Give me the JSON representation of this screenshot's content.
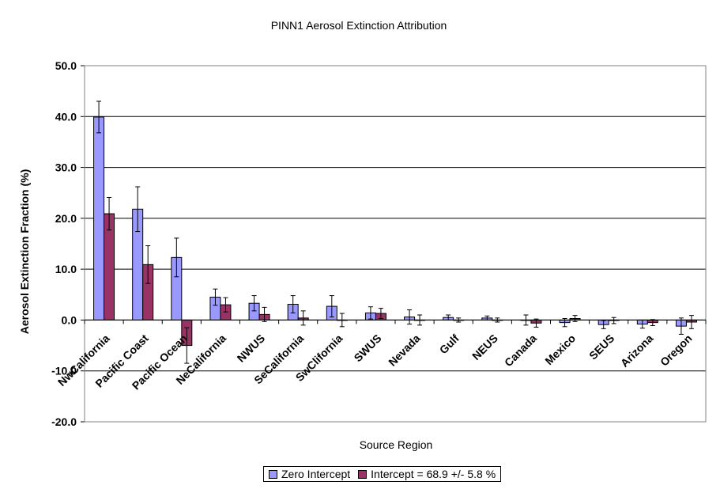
{
  "chart_data": {
    "type": "bar",
    "title": "PINN1 Aerosol Extinction Attribution",
    "xlabel": "Source Region",
    "ylabel": "Aerosol Extinction Fraction (%)",
    "ylim": [
      -20,
      50
    ],
    "yticks": [
      -20,
      -10,
      0,
      10,
      20,
      30,
      40,
      50
    ],
    "ytick_labels": [
      "-20.0",
      "-10.0",
      "0.0",
      "10.0",
      "20.0",
      "30.0",
      "40.0",
      "50.0"
    ],
    "grid": "horizontal",
    "legend_position": "bottom-center",
    "categories": [
      "NwCalifornia",
      "Pacific Coast",
      "Pacific Ocean",
      "NeCalifornia",
      "NWUS",
      "SeCalifornia",
      "SwClifornia",
      "SWUS",
      "Nevada",
      "Gulf",
      "NEUS",
      "Canada",
      "Mexico",
      "SEUS",
      "Arizona",
      "Oregon"
    ],
    "series": [
      {
        "name": "Zero Intercept",
        "color": "#9999ff",
        "values": [
          39.9,
          21.8,
          12.3,
          4.5,
          3.3,
          3.1,
          2.7,
          1.4,
          0.6,
          0.5,
          0.4,
          0.0,
          -0.5,
          -0.9,
          -0.8,
          -1.2
        ],
        "errors": [
          3.1,
          4.4,
          3.8,
          1.6,
          1.5,
          1.7,
          2.1,
          1.2,
          1.4,
          0.5,
          0.4,
          1.0,
          0.8,
          0.8,
          0.8,
          1.6
        ]
      },
      {
        "name": "Intercept = 68.9 +/- 5.8 %",
        "color": "#993366",
        "values": [
          20.9,
          10.9,
          -5.0,
          3.0,
          1.1,
          0.4,
          0.0,
          1.3,
          0.0,
          0.0,
          0.0,
          -0.6,
          0.3,
          -0.1,
          -0.5,
          -0.4
        ],
        "errors": [
          3.2,
          3.7,
          3.5,
          1.4,
          1.4,
          1.4,
          1.3,
          1.0,
          1.0,
          0.4,
          0.4,
          0.8,
          0.6,
          0.6,
          0.6,
          1.3
        ]
      }
    ]
  }
}
